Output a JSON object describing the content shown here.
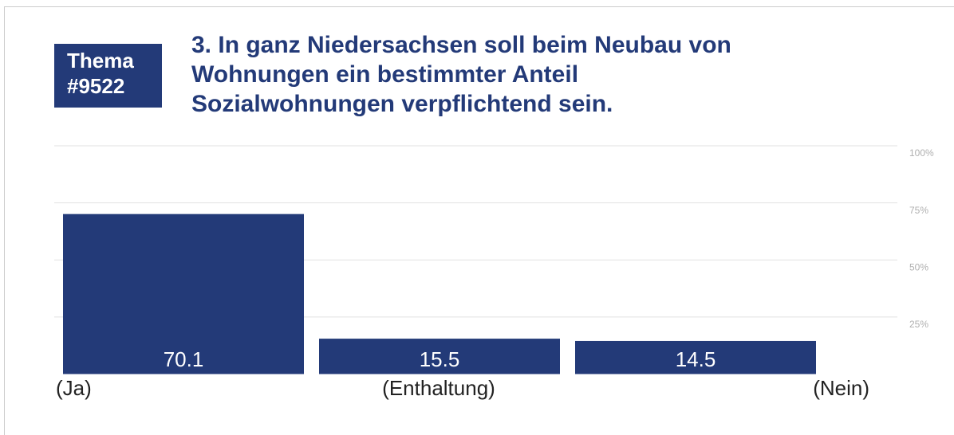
{
  "chart_data": {
    "type": "bar",
    "badge": [
      "Thema",
      "#9522"
    ],
    "title": [
      "3. In ganz Niedersachsen soll beim Neubau von",
      "Wohnungen ein bestimmter Anteil",
      "Sozialwohnungen verpflichtend sein."
    ],
    "categories": [
      "(Ja)",
      "(Enthaltung)",
      "(Nein)"
    ],
    "values": [
      70.1,
      15.5,
      14.5
    ],
    "color": "#233a78",
    "ylim": [
      0,
      100
    ],
    "yticks": [
      {
        "value": 25,
        "label": "25%"
      },
      {
        "value": 50,
        "label": "50%"
      },
      {
        "value": 75,
        "label": "75%"
      },
      {
        "value": 100,
        "label": "100%"
      }
    ],
    "grid": true
  }
}
